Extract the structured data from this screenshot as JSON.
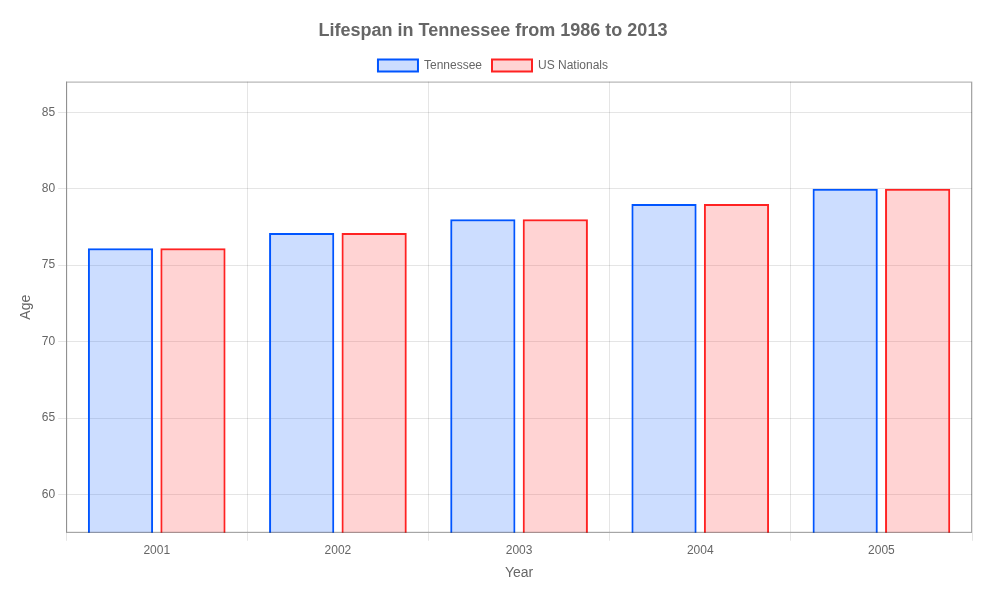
{
  "chart_data": {
    "type": "bar",
    "title": "Lifespan in Tennessee from 1986 to 2013",
    "x_label": "Year",
    "y_label": "Age",
    "categories": [
      "2001",
      "2002",
      "2003",
      "2004",
      "2005"
    ],
    "series": [
      {
        "name": "Tennessee",
        "color": "#0055ff",
        "values": [
          76.1,
          77.1,
          78.0,
          79.0,
          80.0
        ]
      },
      {
        "name": "US Nationals",
        "color": "#ff2222",
        "values": [
          76.1,
          77.1,
          78.0,
          79.0,
          80.0
        ]
      }
    ],
    "ylim": [
      57.5,
      87
    ],
    "yticks": [
      60,
      65,
      70,
      75,
      80,
      85
    ],
    "grid": true,
    "legend": "top"
  }
}
